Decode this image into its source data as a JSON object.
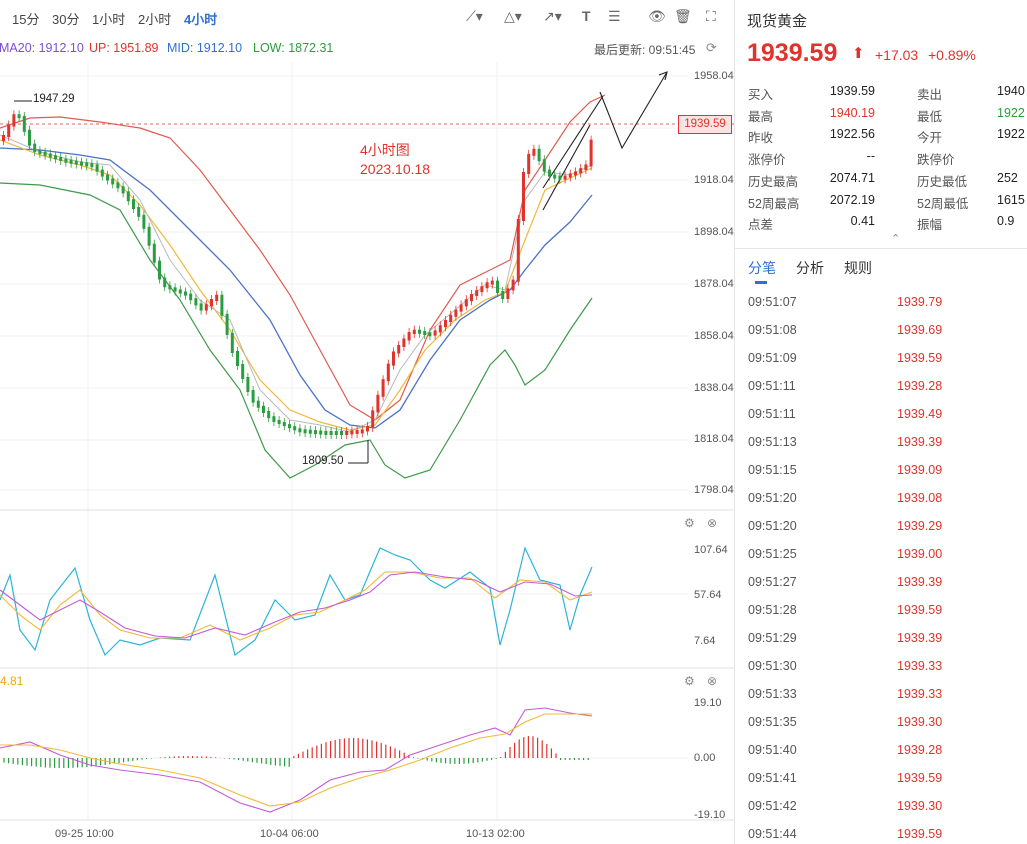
{
  "timeframes": [
    "15分",
    "30分",
    "1小时",
    "2小时",
    "4小时"
  ],
  "active_timeframe": "4小时",
  "indicators": {
    "ma20": "MA20: 1912.10",
    "up": "UP: 1951.89",
    "mid": "MID: 1912.10",
    "low": "LOW: 1872.31"
  },
  "last_update": "最后更新: 09:51:45",
  "annotation": {
    "line1": "4小时图",
    "line2": "2023.10.18"
  },
  "current_price_tag": "1939.59",
  "high_marker": "1947.29",
  "low_marker": "1809.50",
  "price_axis": [
    "1958.04",
    "1918.04",
    "1898.04",
    "1878.04",
    "1858.04",
    "1838.04",
    "1818.04",
    "1798.04"
  ],
  "kdj_axis": [
    "107.64",
    "57.64",
    "7.64"
  ],
  "macd_axis": [
    "19.10",
    "0.00",
    "-19.10"
  ],
  "macd_value": "4.81",
  "x_axis": [
    "09-25 10:00",
    "10-04 06:00",
    "10-13 02:00"
  ],
  "colors": {
    "up": "#e0332d",
    "down": "#2a9d40",
    "accent": "#2f6fd6"
  },
  "quote": {
    "title": "现货黄金",
    "price": "1939.59",
    "change": "+17.03",
    "change_pct": "+0.89%",
    "rows": [
      {
        "l1": "买入",
        "v1": "1939.59",
        "l2": "卖出",
        "v2": "1940"
      },
      {
        "l1": "最高",
        "v1": "1940.19",
        "l2": "最低",
        "v2": "1922"
      },
      {
        "l1": "昨收",
        "v1": "1922.56",
        "l2": "今开",
        "v2": "1922"
      },
      {
        "l1": "涨停价",
        "v1": "--",
        "l2": "跌停价",
        "v2": ""
      },
      {
        "l1": "历史最高",
        "v1": "2074.71",
        "l2": "历史最低",
        "v2": "252"
      },
      {
        "l1": "52周最高",
        "v1": "2072.19",
        "l2": "52周最低",
        "v2": "1615"
      },
      {
        "l1": "点差",
        "v1": "0.41",
        "l2": "振幅",
        "v2": "0.9"
      }
    ]
  },
  "tabs": [
    "分笔",
    "分析",
    "规则"
  ],
  "ticks": [
    {
      "time": "09:51:07",
      "price": "1939.79"
    },
    {
      "time": "09:51:08",
      "price": "1939.69"
    },
    {
      "time": "09:51:09",
      "price": "1939.59"
    },
    {
      "time": "09:51:11",
      "price": "1939.28"
    },
    {
      "time": "09:51:11",
      "price": "1939.49"
    },
    {
      "time": "09:51:13",
      "price": "1939.39"
    },
    {
      "time": "09:51:15",
      "price": "1939.09"
    },
    {
      "time": "09:51:20",
      "price": "1939.08"
    },
    {
      "time": "09:51:20",
      "price": "1939.29"
    },
    {
      "time": "09:51:25",
      "price": "1939.00"
    },
    {
      "time": "09:51:27",
      "price": "1939.39"
    },
    {
      "time": "09:51:28",
      "price": "1939.59"
    },
    {
      "time": "09:51:29",
      "price": "1939.39"
    },
    {
      "time": "09:51:30",
      "price": "1939.33"
    },
    {
      "time": "09:51:33",
      "price": "1939.33"
    },
    {
      "time": "09:51:35",
      "price": "1939.30"
    },
    {
      "time": "09:51:40",
      "price": "1939.28"
    },
    {
      "time": "09:51:41",
      "price": "1939.59"
    },
    {
      "time": "09:51:42",
      "price": "1939.30"
    },
    {
      "time": "09:51:44",
      "price": "1939.59"
    }
  ]
}
